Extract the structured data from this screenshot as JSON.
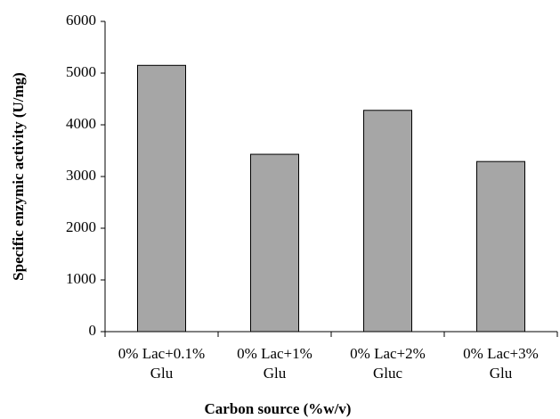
{
  "chart_data": {
    "type": "bar",
    "x_label": "Carbon source (%w/v)",
    "y_label": "Specific enzymic activity (U/mg)",
    "categories": [
      "0% Lac+0.1% Glu",
      "0% Lac+1% Glu",
      "0% Lac+2% Gluc",
      "0% Lac+3% Glu"
    ],
    "values": [
      5150,
      3430,
      4280,
      3290
    ],
    "color": "#a6a6a6",
    "ylim": [
      0,
      6000
    ],
    "yticks": [
      0,
      1000,
      2000,
      3000,
      4000,
      5000,
      6000
    ],
    "grid": false
  }
}
